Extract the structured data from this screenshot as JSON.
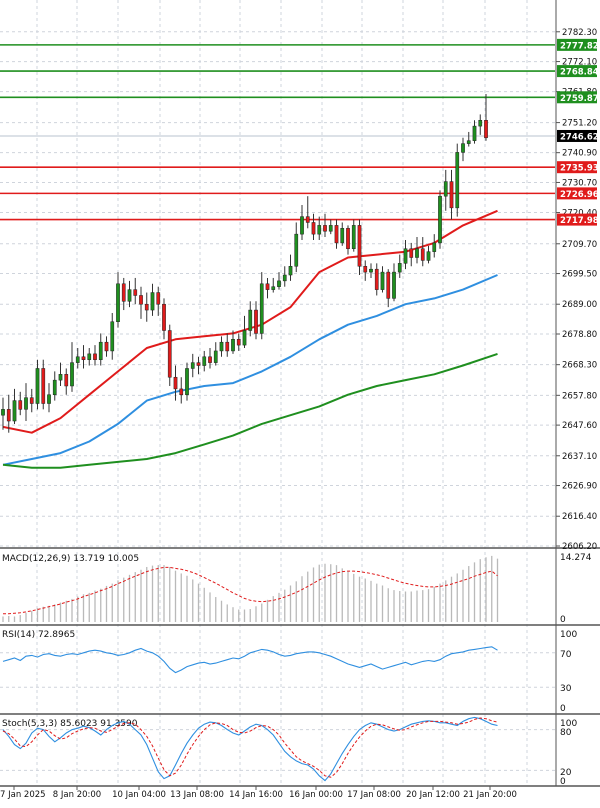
{
  "colors": {
    "bull": "#1f8f1f",
    "bear": "#e01b1b",
    "ma_fast": "#e01b1b",
    "ma_mid": "#2f8fe0",
    "ma_slow": "#1f8f1f",
    "macd_hist": "#b9b9b9",
    "macd_signal": "#e01b1b",
    "rsi": "#2f8fe0",
    "stoch_k": "#2f8fe0",
    "stoch_d": "#e01b1b",
    "grid": "#cfd4dc",
    "axis_text": "#111111"
  },
  "chart_data": [
    {
      "type": "candlestick",
      "price_ticks": [
        "2782.30",
        "2772.10",
        "2761.80",
        "2751.20",
        "2740.90",
        "2730.70",
        "2720.40",
        "2709.70",
        "2699.50",
        "2689.00",
        "2678.80",
        "2668.30",
        "2657.80",
        "2647.60",
        "2637.10",
        "2626.90",
        "2616.40",
        "2606.20"
      ],
      "ylim": [
        2606.2,
        2792.5
      ],
      "hlines": [
        {
          "value": 2777.82,
          "label": "2777.82",
          "color": "#1f8f1f"
        },
        {
          "value": 2768.84,
          "label": "2768.84",
          "color": "#1f8f1f"
        },
        {
          "value": 2759.87,
          "label": "2759.87",
          "color": "#1f8f1f"
        },
        {
          "value": 2735.93,
          "label": "2735.93",
          "color": "#e01b1b"
        },
        {
          "value": 2726.96,
          "label": "2726.96",
          "color": "#e01b1b"
        },
        {
          "value": 2717.98,
          "label": "2717.98",
          "color": "#e01b1b"
        }
      ],
      "current_price": {
        "value": 2746.62,
        "label": "2746.62"
      },
      "time_labels": [
        "7 Jan 2025",
        "8 Jan 20:00",
        "10 Jan 04:00",
        "13 Jan 08:00",
        "14 Jan 16:00",
        "16 Jan 00:00",
        "17 Jan 08:00",
        "20 Jan 12:00",
        "21 Jan 20:00"
      ],
      "candles": [
        [
          2651,
          2653,
          2646,
          2657
        ],
        [
          2653,
          2649,
          2645,
          2658
        ],
        [
          2649,
          2656,
          2648,
          2660
        ],
        [
          2656,
          2653,
          2651,
          2659
        ],
        [
          2653,
          2657,
          2649,
          2662
        ],
        [
          2657,
          2655,
          2652,
          2660
        ],
        [
          2655,
          2667,
          2653,
          2670
        ],
        [
          2667,
          2655,
          2653,
          2670
        ],
        [
          2655,
          2658,
          2652,
          2662
        ],
        [
          2658,
          2663,
          2656,
          2666
        ],
        [
          2663,
          2665,
          2661,
          2669
        ],
        [
          2665,
          2661,
          2658,
          2667
        ],
        [
          2661,
          2669,
          2659,
          2676
        ],
        [
          2669,
          2671,
          2667,
          2674
        ],
        [
          2671,
          2670,
          2667,
          2675
        ],
        [
          2670,
          2672,
          2668,
          2674
        ],
        [
          2672,
          2670,
          2668,
          2675
        ],
        [
          2670,
          2676,
          2668,
          2679
        ],
        [
          2676,
          2673,
          2671,
          2678
        ],
        [
          2673,
          2683,
          2670,
          2686
        ],
        [
          2683,
          2696,
          2681,
          2700
        ],
        [
          2696,
          2690,
          2687,
          2698
        ],
        [
          2690,
          2694,
          2688,
          2697
        ],
        [
          2694,
          2692,
          2689,
          2698
        ],
        [
          2692,
          2689,
          2684,
          2695
        ],
        [
          2689,
          2687,
          2683,
          2693
        ],
        [
          2687,
          2693,
          2685,
          2696
        ],
        [
          2693,
          2689,
          2685,
          2695
        ],
        [
          2689,
          2680,
          2677,
          2691
        ],
        [
          2680,
          2664,
          2661,
          2682
        ],
        [
          2664,
          2660,
          2656,
          2668
        ],
        [
          2660,
          2658,
          2655,
          2664
        ],
        [
          2658,
          2667,
          2656,
          2669
        ],
        [
          2667,
          2669,
          2664,
          2672
        ],
        [
          2669,
          2668,
          2665,
          2671
        ],
        [
          2668,
          2671,
          2666,
          2673
        ],
        [
          2671,
          2669,
          2667,
          2674
        ],
        [
          2669,
          2673,
          2668,
          2676
        ],
        [
          2673,
          2676,
          2671,
          2678
        ],
        [
          2676,
          2673,
          2671,
          2679
        ],
        [
          2673,
          2677,
          2672,
          2680
        ],
        [
          2677,
          2675,
          2673,
          2679
        ],
        [
          2675,
          2680,
          2674,
          2685
        ],
        [
          2680,
          2687,
          2678,
          2690
        ],
        [
          2687,
          2679,
          2677,
          2690
        ],
        [
          2679,
          2696,
          2677,
          2700
        ],
        [
          2696,
          2694,
          2691,
          2698
        ],
        [
          2694,
          2695,
          2693,
          2698
        ],
        [
          2695,
          2697,
          2694,
          2700
        ],
        [
          2697,
          2699,
          2695,
          2702
        ],
        [
          2699,
          2702,
          2697,
          2706
        ],
        [
          2702,
          2713,
          2700,
          2717
        ],
        [
          2713,
          2719,
          2711,
          2723
        ],
        [
          2719,
          2717,
          2715,
          2726
        ],
        [
          2717,
          2713,
          2711,
          2720
        ],
        [
          2713,
          2716,
          2711,
          2719
        ],
        [
          2716,
          2714,
          2712,
          2720
        ],
        [
          2714,
          2716,
          2713,
          2718
        ],
        [
          2716,
          2710,
          2708,
          2718
        ],
        [
          2710,
          2715,
          2709,
          2717
        ],
        [
          2715,
          2708,
          2706,
          2716
        ],
        [
          2708,
          2716,
          2707,
          2718
        ],
        [
          2716,
          2702,
          2699,
          2718
        ],
        [
          2702,
          2700,
          2697,
          2704
        ],
        [
          2700,
          2701,
          2698,
          2703
        ],
        [
          2701,
          2694,
          2692,
          2703
        ],
        [
          2694,
          2700,
          2693,
          2702
        ],
        [
          2700,
          2691,
          2688,
          2701
        ],
        [
          2691,
          2700,
          2690,
          2703
        ],
        [
          2700,
          2703,
          2698,
          2706
        ],
        [
          2703,
          2708,
          2701,
          2711
        ],
        [
          2708,
          2705,
          2702,
          2710
        ],
        [
          2705,
          2708,
          2703,
          2712
        ],
        [
          2708,
          2704,
          2702,
          2712
        ],
        [
          2704,
          2707,
          2703,
          2709
        ],
        [
          2707,
          2710,
          2705,
          2713
        ],
        [
          2710,
          2726,
          2708,
          2728
        ],
        [
          2726,
          2731,
          2721,
          2735
        ],
        [
          2731,
          2722,
          2718,
          2735
        ],
        [
          2722,
          2741,
          2719,
          2744
        ],
        [
          2741,
          2744,
          2738,
          2746
        ],
        [
          2744,
          2745,
          2743,
          2748
        ],
        [
          2745,
          2750,
          2744,
          2752
        ],
        [
          2750,
          2752,
          2747,
          2754
        ],
        [
          2752,
          2746,
          2745,
          2761
        ]
      ],
      "ma": [
        {
          "name": "fast",
          "color": "#e01b1b",
          "values": [
            [
              0,
              2647
            ],
            [
              5,
              2645
            ],
            [
              10,
              2650
            ],
            [
              15,
              2658
            ],
            [
              20,
              2666
            ],
            [
              25,
              2674
            ],
            [
              30,
              2677
            ],
            [
              35,
              2678
            ],
            [
              40,
              2679
            ],
            [
              45,
              2682
            ],
            [
              50,
              2688
            ],
            [
              55,
              2700
            ],
            [
              60,
              2705
            ],
            [
              65,
              2706
            ],
            [
              70,
              2707
            ],
            [
              75,
              2710
            ],
            [
              80,
              2716
            ],
            [
              86,
              2721
            ]
          ]
        },
        {
          "name": "mid",
          "color": "#2f8fe0",
          "values": [
            [
              0,
              2634
            ],
            [
              5,
              2636
            ],
            [
              10,
              2638
            ],
            [
              15,
              2642
            ],
            [
              20,
              2648
            ],
            [
              25,
              2656
            ],
            [
              30,
              2659
            ],
            [
              35,
              2661
            ],
            [
              40,
              2662
            ],
            [
              45,
              2666
            ],
            [
              50,
              2671
            ],
            [
              55,
              2677
            ],
            [
              60,
              2682
            ],
            [
              65,
              2685
            ],
            [
              70,
              2689
            ],
            [
              75,
              2691
            ],
            [
              80,
              2694
            ],
            [
              86,
              2699
            ]
          ]
        },
        {
          "name": "slow",
          "color": "#1f8f1f",
          "values": [
            [
              0,
              2634
            ],
            [
              5,
              2633
            ],
            [
              10,
              2633
            ],
            [
              15,
              2634
            ],
            [
              20,
              2635
            ],
            [
              25,
              2636
            ],
            [
              30,
              2638
            ],
            [
              35,
              2641
            ],
            [
              40,
              2644
            ],
            [
              45,
              2648
            ],
            [
              50,
              2651
            ],
            [
              55,
              2654
            ],
            [
              60,
              2658
            ],
            [
              65,
              2661
            ],
            [
              70,
              2663
            ],
            [
              75,
              2665
            ],
            [
              80,
              2668
            ],
            [
              86,
              2672
            ]
          ]
        }
      ]
    },
    {
      "type": "bar",
      "title": "MACD(12,26,9) 13.719 10.005",
      "ticks": [
        "14.274",
        "0"
      ],
      "ylim": [
        0,
        14.274
      ],
      "hist": [
        1.2,
        1.3,
        1.2,
        1.5,
        2.0,
        2.4,
        3.0,
        3.3,
        3.5,
        3.8,
        4.2,
        4.6,
        5.0,
        5.5,
        6.0,
        6.3,
        6.8,
        7.2,
        7.8,
        8.3,
        9.0,
        9.6,
        10.2,
        10.8,
        11.3,
        11.9,
        12.2,
        12.3,
        12.3,
        11.9,
        11.1,
        10.5,
        10.0,
        9.2,
        8.3,
        7.4,
        6.4,
        5.4,
        4.6,
        3.8,
        3.2,
        2.7,
        2.7,
        2.8,
        3.4,
        4.0,
        4.8,
        5.6,
        6.3,
        7.0,
        7.9,
        8.8,
        9.9,
        10.9,
        11.8,
        12.4,
        12.6,
        12.5,
        12.3,
        11.6,
        10.9,
        10.4,
        9.8,
        9.4,
        8.9,
        8.3,
        7.9,
        7.3,
        6.9,
        6.7,
        6.6,
        6.6,
        6.8,
        6.9,
        7.1,
        7.6,
        8.3,
        9.0,
        9.8,
        10.5,
        11.3,
        12.1,
        12.9,
        13.6,
        14.0,
        14.3,
        13.7
      ],
      "signal": [
        1.8,
        1.8,
        1.9,
        2.0,
        2.2,
        2.4,
        2.7,
        3.0,
        3.3,
        3.6,
        3.9,
        4.3,
        4.6,
        5.0,
        5.5,
        5.9,
        6.3,
        6.8,
        7.2,
        7.7,
        8.3,
        8.8,
        9.4,
        9.9,
        10.4,
        10.9,
        11.3,
        11.6,
        11.8,
        11.8,
        11.6,
        11.4,
        11.1,
        10.7,
        10.2,
        9.6,
        9.0,
        8.4,
        7.7,
        7.0,
        6.3,
        5.7,
        5.1,
        4.7,
        4.5,
        4.4,
        4.5,
        4.7,
        5.0,
        5.4,
        5.9,
        6.4,
        7.0,
        7.7,
        8.4,
        9.1,
        9.7,
        10.2,
        10.6,
        10.9,
        11.0,
        11.0,
        10.9,
        10.7,
        10.5,
        10.2,
        9.9,
        9.5,
        9.1,
        8.7,
        8.4,
        8.1,
        7.9,
        7.7,
        7.6,
        7.6,
        7.7,
        7.9,
        8.2,
        8.6,
        9.0,
        9.4,
        9.9,
        10.3,
        10.7,
        11.0,
        10.0
      ]
    },
    {
      "type": "line",
      "title": "RSI(14) 72.8965",
      "ticks": [
        "100",
        "70",
        "30",
        "0"
      ],
      "ylim": [
        0,
        100
      ],
      "values": [
        60,
        62,
        64,
        61,
        66,
        67,
        65,
        68,
        69,
        67,
        66,
        68,
        69,
        68,
        70,
        72,
        73,
        72,
        70,
        69,
        67,
        68,
        70,
        73,
        75,
        72,
        70,
        66,
        60,
        52,
        47,
        50,
        54,
        56,
        58,
        59,
        57,
        58,
        60,
        62,
        64,
        63,
        66,
        70,
        72,
        74,
        73,
        71,
        68,
        66,
        67,
        69,
        70,
        71,
        71,
        70,
        68,
        66,
        63,
        60,
        57,
        55,
        53,
        55,
        57,
        54,
        51,
        53,
        55,
        57,
        59,
        56,
        58,
        60,
        61,
        60,
        62,
        66,
        69,
        70,
        71,
        73,
        74,
        75,
        76,
        77,
        73
      ]
    },
    {
      "type": "line",
      "title": "Stoch(5,3,3) 85.6023 91.3590",
      "ticks": [
        "100",
        "80",
        "20",
        "0"
      ],
      "ylim": [
        0,
        100
      ],
      "k": [
        80,
        70,
        58,
        52,
        60,
        75,
        82,
        80,
        70,
        62,
        68,
        75,
        80,
        82,
        85,
        83,
        78,
        72,
        80,
        86,
        90,
        92,
        88,
        80,
        72,
        58,
        38,
        18,
        8,
        12,
        28,
        45,
        60,
        72,
        82,
        88,
        91,
        90,
        86,
        80,
        75,
        72,
        78,
        84,
        88,
        86,
        80,
        72,
        60,
        48,
        40,
        34,
        30,
        28,
        22,
        12,
        5,
        15,
        30,
        45,
        58,
        70,
        80,
        86,
        90,
        88,
        84,
        80,
        78,
        80,
        84,
        88,
        90,
        92,
        93,
        92,
        90,
        90,
        88,
        86,
        92,
        96,
        98,
        96,
        92,
        88,
        86
      ],
      "d": [
        78,
        74,
        66,
        56,
        55,
        62,
        72,
        80,
        78,
        71,
        66,
        68,
        74,
        78,
        81,
        83,
        82,
        78,
        76,
        80,
        85,
        89,
        90,
        88,
        80,
        70,
        56,
        38,
        21,
        12,
        16,
        28,
        44,
        58,
        70,
        80,
        87,
        90,
        89,
        86,
        80,
        76,
        75,
        78,
        83,
        86,
        85,
        80,
        72,
        60,
        50,
        40,
        34,
        30,
        26,
        20,
        12,
        10,
        17,
        30,
        45,
        58,
        69,
        78,
        85,
        88,
        87,
        84,
        81,
        79,
        80,
        84,
        87,
        90,
        92,
        92,
        92,
        91,
        90,
        88,
        89,
        91,
        95,
        97,
        96,
        93,
        91
      ]
    }
  ]
}
